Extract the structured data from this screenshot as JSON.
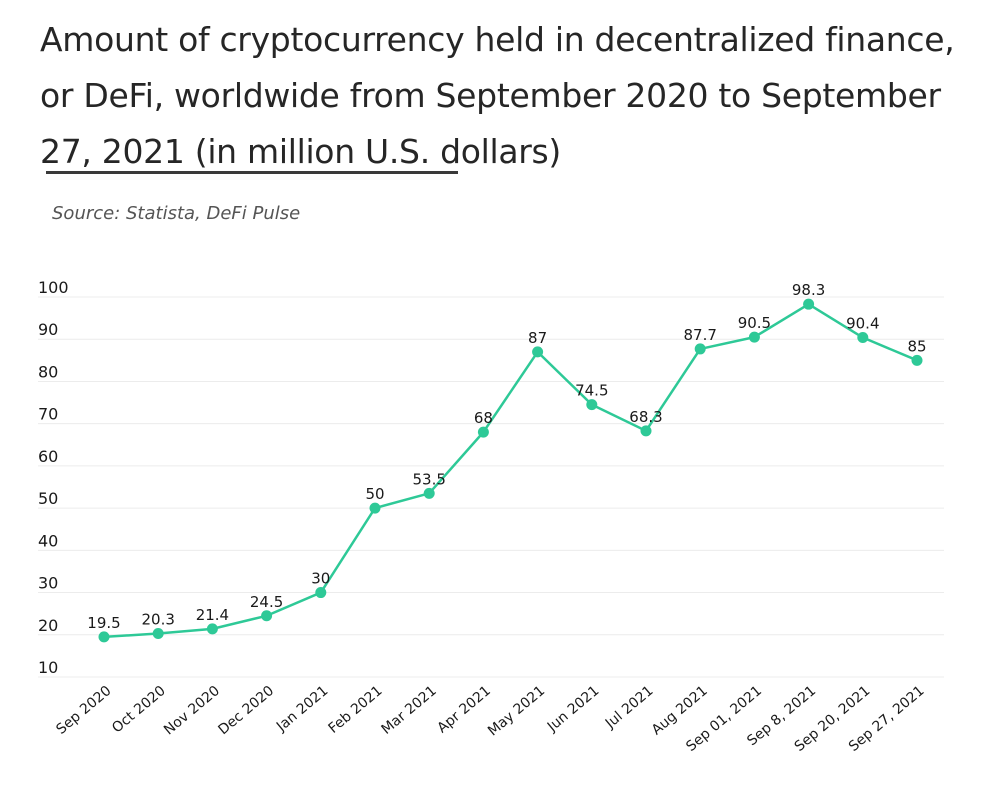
{
  "title": "Amount of cryptocurrency held in decentralized finance, or DeFi, worldwide from September 2020 to September 27, 2021 (in million U.S. dollars)",
  "source": "Source: Statista, DeFi Pulse",
  "colors": {
    "line": "#2ec997",
    "grid": "#ececec",
    "text": "#1a1a1a"
  },
  "chart_data": {
    "type": "line",
    "categories": [
      "Sep 2020",
      "Oct 2020",
      "Nov 2020",
      "Dec 2020",
      "Jan 2021",
      "Feb 2021",
      "Mar 2021",
      "Apr 2021",
      "May 2021",
      "Jun 2021",
      "Jul 2021",
      "Aug 2021",
      "Sep 01, 2021",
      "Sep 8, 2021",
      "Sep 20, 2021",
      "Sep 27, 2021"
    ],
    "values": [
      19.5,
      20.3,
      21.4,
      24.5,
      30,
      50,
      53.5,
      68,
      87,
      74.5,
      68.3,
      87.7,
      90.5,
      98.3,
      90.4,
      85
    ],
    "yticks": [
      10,
      20,
      30,
      40,
      50,
      60,
      70,
      80,
      90,
      100
    ],
    "ylim": [
      10,
      100
    ],
    "grid": true,
    "data_labels": true
  }
}
